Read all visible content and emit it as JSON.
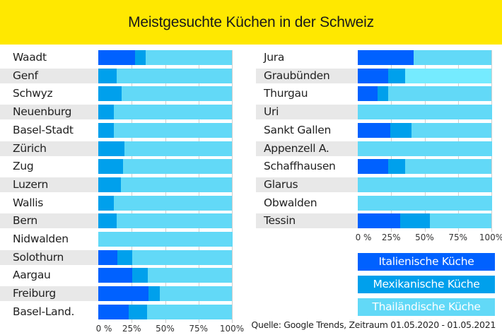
{
  "title": "Meistgesuchte Küchen in der Schweiz",
  "colors": {
    "header_bg": "#ffe800",
    "italienisch": "#0061ff",
    "mexikanisch": "#00a0ec",
    "thai": "#62d9f7",
    "thai_highlight": "#75ebff",
    "stripe": "#e8e8e8"
  },
  "legend": [
    {
      "label": "Italienische Küche",
      "color": "#0061ff"
    },
    {
      "label": "Mexikanische Küche",
      "color": "#00a0ec"
    },
    {
      "label": "Thailändische Küche",
      "color": "#62d9f7"
    }
  ],
  "source": "Quelle: Google Trends, Zeitraum 01.05.2020 - 01.05.2021",
  "chart_data": [
    {
      "type": "bar",
      "orientation": "horizontal-stacked-100",
      "title": "Meistgesuchte Küchen in der Schweiz (links)",
      "xlabel": "",
      "ylabel": "",
      "xlim": [
        0,
        100
      ],
      "x_ticks": [
        "0 %",
        "25%",
        "50%",
        "75%",
        "100%"
      ],
      "categories": [
        "Waadt",
        "Genf",
        "Schwyz",
        "Neuenburg",
        "Basel-Stadt",
        "Zürich",
        "Zug",
        "Luzern",
        "Wallis",
        "Bern",
        "Nidwalden",
        "Solothurn",
        "Aargau",
        "Freiburg",
        "Basel-Land."
      ],
      "series": [
        {
          "name": "Italienische Küche",
          "values": [
            27.5,
            0,
            0,
            0,
            0,
            0,
            0,
            0,
            0,
            0,
            0,
            14.5,
            25.5,
            37.5,
            23
          ]
        },
        {
          "name": "Mexikanische Küche",
          "values": [
            8,
            14,
            17.5,
            11.5,
            11.5,
            19.5,
            18.5,
            17,
            11.5,
            14,
            0,
            11,
            11.5,
            8.5,
            13.5
          ]
        },
        {
          "name": "Thailändische Küche",
          "values": [
            64.5,
            86,
            82.5,
            88.5,
            88.5,
            80.5,
            81.5,
            83,
            88.5,
            86,
            100,
            74.5,
            63,
            54,
            63.5
          ]
        }
      ],
      "striped_rows": [
        1,
        3,
        5,
        7,
        9,
        11,
        13
      ],
      "grid": true
    },
    {
      "type": "bar",
      "orientation": "horizontal-stacked-100",
      "title": "Meistgesuchte Küchen in der Schweiz (rechts)",
      "xlabel": "",
      "ylabel": "",
      "xlim": [
        0,
        100
      ],
      "x_ticks": [
        "0 %",
        "25%",
        "50%",
        "75%",
        "100%"
      ],
      "categories": [
        "Jura",
        "Graubünden",
        "Thurgau",
        "Uri",
        "Sankt Gallen",
        "Appenzell A.",
        "Schaffhausen",
        "Glarus",
        "Obwalden",
        "Tessin"
      ],
      "series": [
        {
          "name": "Italienische Küche",
          "values": [
            42,
            23,
            15,
            0,
            24.5,
            0,
            23,
            0,
            0,
            32
          ]
        },
        {
          "name": "Mexikanische Küche",
          "values": [
            0,
            12.5,
            8,
            0,
            15.5,
            0,
            12.5,
            0,
            0,
            22
          ]
        },
        {
          "name": "Thailändische Küche",
          "values": [
            58,
            64.5,
            77,
            100,
            60,
            100,
            64.5,
            100,
            100,
            46
          ]
        }
      ],
      "striped_rows": [
        1,
        3,
        5,
        7,
        9
      ],
      "highlight_row": 1,
      "grid": true
    }
  ]
}
